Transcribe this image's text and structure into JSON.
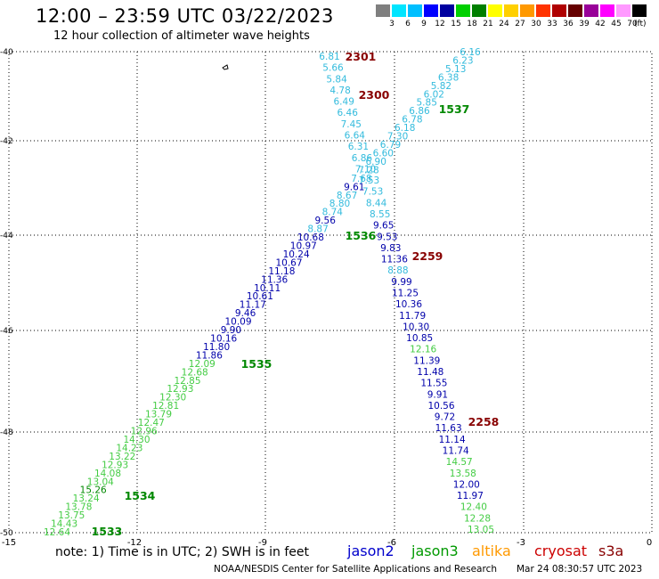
{
  "header": {
    "title": "12:00 – 23:59 UTC 03/22/2023",
    "subtitle": "12 hour collection of altimeter wave heights"
  },
  "color_scale": {
    "swatches": [
      "#7f7f7f",
      "#00e5ff",
      "#00bfff",
      "#0000ff",
      "#0000a0",
      "#00d000",
      "#008000",
      "#ffff00",
      "#ffd000",
      "#ff9900",
      "#ff3300",
      "#b00000",
      "#660000",
      "#990099",
      "#ff00ff",
      "#ff99ff",
      "#000000"
    ],
    "labels": [
      "3",
      "6",
      "9",
      "12",
      "15",
      "18",
      "21",
      "24",
      "27",
      "30",
      "33",
      "36",
      "39",
      "42",
      "45",
      "70"
    ],
    "unit": "(ft)"
  },
  "axes": {
    "x_ticks": [
      "-15",
      "-12",
      "-9",
      "-6",
      "-3",
      "0"
    ],
    "y_ticks": [
      "-40",
      "-42",
      "-44",
      "-46",
      "-48",
      "-50"
    ]
  },
  "colors": {
    "cyan": "#33bbdd",
    "blue": "#0000aa",
    "lightgreen": "#44cc44",
    "green": "#008800",
    "maroon": "#880000"
  },
  "tracks": {
    "right_ascending": [
      [
        "6.16",
        "cyan"
      ],
      [
        "6.23",
        "cyan"
      ],
      [
        "5.13",
        "cyan"
      ],
      [
        "6.38",
        "cyan"
      ],
      [
        "5.82",
        "cyan"
      ],
      [
        "6.02",
        "cyan"
      ],
      [
        "5.85",
        "cyan"
      ],
      [
        "6.86",
        "cyan"
      ],
      [
        "6.78",
        "cyan"
      ],
      [
        "6.18",
        "cyan"
      ],
      [
        "7.30",
        "cyan"
      ],
      [
        "6.79",
        "cyan"
      ],
      [
        "6.60",
        "cyan"
      ],
      [
        "6.90",
        "cyan"
      ],
      [
        "7.28",
        "cyan"
      ],
      [
        "7.68",
        "cyan"
      ],
      [
        "9.61",
        "blue"
      ],
      [
        "8.67",
        "cyan"
      ],
      [
        "8.80",
        "cyan"
      ],
      [
        "8.74",
        "cyan"
      ],
      [
        "9.56",
        "blue"
      ],
      [
        "8.87",
        "cyan"
      ],
      [
        "10.68",
        "blue"
      ],
      [
        "10.97",
        "blue"
      ],
      [
        "10.24",
        "blue"
      ],
      [
        "10.67",
        "blue"
      ],
      [
        "11.18",
        "blue"
      ],
      [
        "11.36",
        "blue"
      ],
      [
        "10.11",
        "blue"
      ],
      [
        "10.61",
        "blue"
      ],
      [
        "11.17",
        "blue"
      ],
      [
        "9.46",
        "blue"
      ],
      [
        "10.09",
        "blue"
      ],
      [
        "9.90",
        "blue"
      ],
      [
        "10.16",
        "blue"
      ],
      [
        "11.80",
        "blue"
      ],
      [
        "11.86",
        "blue"
      ],
      [
        "12.09",
        "lightgreen"
      ],
      [
        "12.68",
        "lightgreen"
      ],
      [
        "12.85",
        "lightgreen"
      ],
      [
        "12.93",
        "lightgreen"
      ],
      [
        "12.30",
        "lightgreen"
      ],
      [
        "12.81",
        "lightgreen"
      ],
      [
        "13.79",
        "lightgreen"
      ],
      [
        "12.47",
        "lightgreen"
      ],
      [
        "12.96",
        "lightgreen"
      ],
      [
        "14.30",
        "lightgreen"
      ],
      [
        "14.23",
        "lightgreen"
      ],
      [
        "13.22",
        "lightgreen"
      ],
      [
        "12.93",
        "lightgreen"
      ],
      [
        "14.08",
        "lightgreen"
      ],
      [
        "13.04",
        "lightgreen"
      ],
      [
        "15.26",
        "green"
      ],
      [
        "13.24",
        "lightgreen"
      ],
      [
        "13.78",
        "lightgreen"
      ],
      [
        "13.75",
        "lightgreen"
      ],
      [
        "14.43",
        "lightgreen"
      ],
      [
        "12.64",
        "lightgreen"
      ]
    ],
    "left_descending": [
      [
        "6.81",
        "cyan"
      ],
      [
        "5.66",
        "cyan"
      ],
      [
        "5.84",
        "cyan"
      ],
      [
        "4.78",
        "cyan"
      ],
      [
        "6.49",
        "cyan"
      ],
      [
        "6.46",
        "cyan"
      ],
      [
        "7.45",
        "cyan"
      ],
      [
        "6.64",
        "cyan"
      ],
      [
        "6.31",
        "cyan"
      ],
      [
        "6.86",
        "cyan"
      ],
      [
        "7.10",
        "cyan"
      ],
      [
        "7.53",
        "cyan"
      ],
      [
        "7.53",
        "cyan"
      ],
      [
        "8.44",
        "cyan"
      ],
      [
        "8.55",
        "cyan"
      ],
      [
        "9.65",
        "blue"
      ],
      [
        "9.53",
        "blue"
      ],
      [
        "9.83",
        "blue"
      ],
      [
        "11.36",
        "blue"
      ],
      [
        "8.88",
        "cyan"
      ],
      [
        "9.99",
        "blue"
      ],
      [
        "11.25",
        "blue"
      ],
      [
        "10.36",
        "blue"
      ],
      [
        "11.79",
        "blue"
      ],
      [
        "10.30",
        "blue"
      ],
      [
        "10.85",
        "blue"
      ],
      [
        "12.16",
        "lightgreen"
      ],
      [
        "11.39",
        "blue"
      ],
      [
        "11.48",
        "blue"
      ],
      [
        "11.55",
        "blue"
      ],
      [
        "9.91",
        "blue"
      ],
      [
        "10.56",
        "blue"
      ],
      [
        "9.72",
        "blue"
      ],
      [
        "11.63",
        "blue"
      ],
      [
        "11.14",
        "blue"
      ],
      [
        "11.74",
        "blue"
      ],
      [
        "14.57",
        "lightgreen"
      ],
      [
        "13.58",
        "lightgreen"
      ],
      [
        "12.00",
        "blue"
      ],
      [
        "11.97",
        "blue"
      ],
      [
        "12.40",
        "lightgreen"
      ],
      [
        "12.28",
        "lightgreen"
      ],
      [
        "13.05",
        "lightgreen"
      ]
    ]
  },
  "time_labels": [
    [
      "2301",
      "maroon"
    ],
    [
      "2300",
      "maroon"
    ],
    [
      "1537",
      "green"
    ],
    [
      "1536",
      "green"
    ],
    [
      "2259",
      "maroon"
    ],
    [
      "1535",
      "green"
    ],
    [
      "2258",
      "maroon"
    ],
    [
      "1534",
      "green"
    ],
    [
      "1533",
      "green"
    ]
  ],
  "footer": {
    "note": "note: 1) Time is in UTC; 2) SWH is in feet",
    "missions": [
      {
        "label": "jason2",
        "color": "#0000cc"
      },
      {
        "label": "jason3",
        "color": "#009900"
      },
      {
        "label": "altika",
        "color": "#ff9900"
      },
      {
        "label": "cryosat",
        "color": "#cc0000"
      },
      {
        "label": "s3a",
        "color": "#880000"
      }
    ],
    "credit": "NOAA/NESDIS Center for Satellite Applications and Research",
    "timestamp": "Mar 24 08:30:57 UTC 2023"
  }
}
